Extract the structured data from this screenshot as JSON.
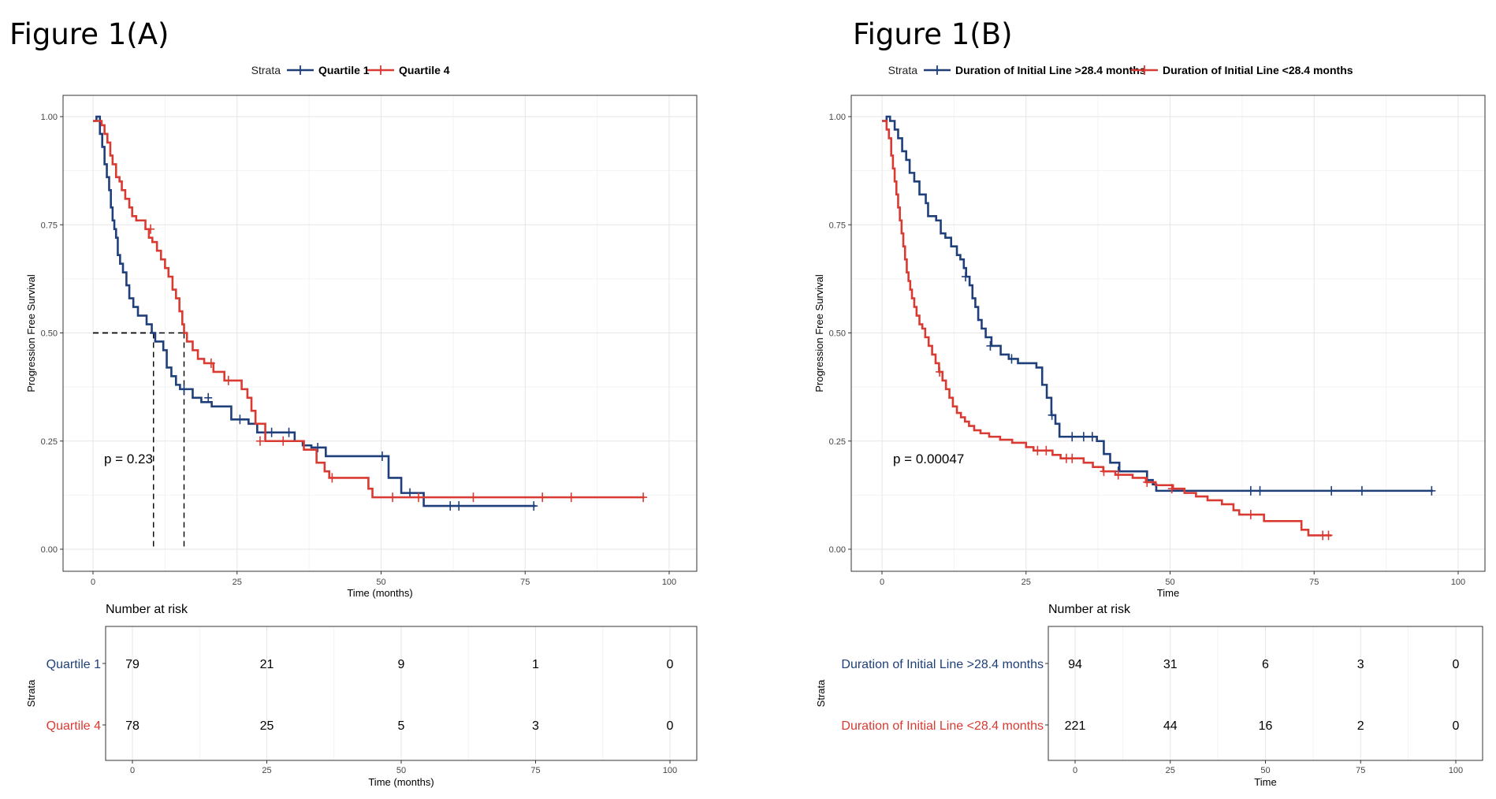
{
  "chart_data": [
    {
      "type": "line",
      "figure_label": "Figure 1(A)",
      "legend_title": "Strata",
      "legend_position": "top",
      "ylabel": "Progression Free Survival",
      "xlabel": "Time (months)",
      "xlim": [
        0,
        100
      ],
      "ylim": [
        0,
        1
      ],
      "x_ticks": [
        0,
        25,
        50,
        75,
        100
      ],
      "x_tick_labels": [
        "0",
        "25",
        "50",
        "75",
        "100"
      ],
      "y_ticks": [
        0,
        0.25,
        0.5,
        0.75,
        1
      ],
      "y_tick_labels": [
        "0.00",
        "0.25",
        "0.50",
        "0.75",
        "1.00"
      ],
      "grid": true,
      "p_value": "p = 0.23",
      "median_lines": [
        {
          "x": 10.5,
          "y": 0.5
        },
        {
          "x": 15.8,
          "y": 0.5
        }
      ],
      "series": [
        {
          "name": "Quartile 1",
          "color": "#1f3f7a",
          "steps": [
            [
              0,
              0.99
            ],
            [
              0.6,
              1
            ],
            [
              1.2,
              0.96
            ],
            [
              1.6,
              0.93
            ],
            [
              2,
              0.89
            ],
            [
              2.4,
              0.86
            ],
            [
              2.8,
              0.83
            ],
            [
              3.1,
              0.79
            ],
            [
              3.4,
              0.76
            ],
            [
              3.7,
              0.74
            ],
            [
              4,
              0.72
            ],
            [
              4.3,
              0.68
            ],
            [
              4.7,
              0.66
            ],
            [
              5.2,
              0.64
            ],
            [
              5.8,
              0.61
            ],
            [
              6.3,
              0.58
            ],
            [
              7,
              0.56
            ],
            [
              7.8,
              0.54
            ],
            [
              9.3,
              0.52
            ],
            [
              10.2,
              0.5
            ],
            [
              10.8,
              0.48
            ],
            [
              12.2,
              0.46
            ],
            [
              12.8,
              0.42
            ],
            [
              13.6,
              0.4
            ],
            [
              14.4,
              0.38
            ],
            [
              15.1,
              0.37
            ],
            [
              17.3,
              0.35
            ],
            [
              18.8,
              0.34
            ],
            [
              20.6,
              0.33
            ],
            [
              24,
              0.3
            ],
            [
              27,
              0.29
            ],
            [
              28.5,
              0.27
            ],
            [
              35,
              0.25
            ],
            [
              36.4,
              0.24
            ],
            [
              37.9,
              0.235
            ],
            [
              40.4,
              0.215
            ],
            [
              51.3,
              0.165
            ],
            [
              53.5,
              0.13
            ],
            [
              57,
              0.13
            ],
            [
              57.4,
              0.1
            ],
            [
              76.8,
              0.1
            ]
          ],
          "censors": [
            [
              15.8,
              0.37
            ],
            [
              20,
              0.35
            ],
            [
              25.5,
              0.3
            ],
            [
              31,
              0.27
            ],
            [
              34,
              0.27
            ],
            [
              39,
              0.235
            ],
            [
              50.2,
              0.215
            ],
            [
              55,
              0.13
            ],
            [
              62,
              0.1
            ],
            [
              63.5,
              0.1
            ],
            [
              76.5,
              0.1
            ]
          ],
          "risk": [
            79,
            21,
            9,
            1,
            0
          ]
        },
        {
          "name": "Quartile 4",
          "color": "#d93a32",
          "steps": [
            [
              0,
              0.99
            ],
            [
              1,
              0.99
            ],
            [
              1.5,
              0.98
            ],
            [
              2,
              0.96
            ],
            [
              2.5,
              0.94
            ],
            [
              3,
              0.91
            ],
            [
              3.4,
              0.89
            ],
            [
              4,
              0.86
            ],
            [
              4.6,
              0.85
            ],
            [
              5,
              0.83
            ],
            [
              5.6,
              0.81
            ],
            [
              6.3,
              0.79
            ],
            [
              6.8,
              0.77
            ],
            [
              7.5,
              0.76
            ],
            [
              9.1,
              0.74
            ],
            [
              9.7,
              0.72
            ],
            [
              10.3,
              0.71
            ],
            [
              11.1,
              0.69
            ],
            [
              11.8,
              0.67
            ],
            [
              12.5,
              0.65
            ],
            [
              13.1,
              0.63
            ],
            [
              13.8,
              0.6
            ],
            [
              14.4,
              0.58
            ],
            [
              15,
              0.55
            ],
            [
              15.5,
              0.52
            ],
            [
              15.8,
              0.5
            ],
            [
              16.3,
              0.48
            ],
            [
              17.3,
              0.46
            ],
            [
              18.2,
              0.44
            ],
            [
              19.3,
              0.43
            ],
            [
              20.9,
              0.41
            ],
            [
              22.8,
              0.39
            ],
            [
              25.8,
              0.37
            ],
            [
              26.8,
              0.35
            ],
            [
              27.5,
              0.32
            ],
            [
              28.2,
              0.29
            ],
            [
              29.9,
              0.25
            ],
            [
              36.6,
              0.23
            ],
            [
              38.8,
              0.2
            ],
            [
              40.2,
              0.18
            ],
            [
              41,
              0.165
            ],
            [
              47.8,
              0.14
            ],
            [
              48.5,
              0.12
            ],
            [
              95.7,
              0.12
            ]
          ],
          "censors": [
            [
              10,
              0.74
            ],
            [
              20.5,
              0.43
            ],
            [
              23.5,
              0.39
            ],
            [
              29,
              0.25
            ],
            [
              33,
              0.25
            ],
            [
              41.5,
              0.165
            ],
            [
              52,
              0.12
            ],
            [
              56.5,
              0.12
            ],
            [
              66,
              0.12
            ],
            [
              78,
              0.12
            ],
            [
              83,
              0.12
            ],
            [
              95.5,
              0.12
            ]
          ],
          "risk": [
            78,
            25,
            5,
            3,
            0
          ]
        }
      ],
      "risk_table": {
        "title": "Number at risk",
        "ylabel": "Strata",
        "xlabel": "Time (months)",
        "times": [
          0,
          25,
          50,
          75,
          100
        ],
        "time_labels": [
          "0",
          "25",
          "50",
          "75",
          "100"
        ]
      }
    },
    {
      "type": "line",
      "figure_label": "Figure 1(B)",
      "legend_title": "Strata",
      "legend_position": "top",
      "ylabel": "Progression Free Survival",
      "xlabel": "Time",
      "xlim": [
        0,
        100
      ],
      "ylim": [
        0,
        1
      ],
      "x_ticks": [
        0,
        25,
        50,
        75,
        100
      ],
      "x_tick_labels": [
        "0",
        "25",
        "50",
        "75",
        "100"
      ],
      "y_ticks": [
        0,
        0.25,
        0.5,
        0.75,
        1
      ],
      "y_tick_labels": [
        "0.00",
        "0.25",
        "0.50",
        "0.75",
        "1.00"
      ],
      "grid": true,
      "p_value": "p = 0.00047",
      "median_lines": [],
      "series": [
        {
          "name": "Duration of Initial Line >28.4 months",
          "color": "#1f3f7a",
          "steps": [
            [
              0,
              0.99
            ],
            [
              0.8,
              1
            ],
            [
              1.4,
              0.99
            ],
            [
              2.2,
              0.97
            ],
            [
              2.8,
              0.95
            ],
            [
              3.5,
              0.92
            ],
            [
              4.2,
              0.9
            ],
            [
              4.8,
              0.87
            ],
            [
              5.6,
              0.85
            ],
            [
              6.5,
              0.82
            ],
            [
              7.6,
              0.8
            ],
            [
              8,
              0.77
            ],
            [
              9.4,
              0.76
            ],
            [
              10.2,
              0.73
            ],
            [
              11,
              0.72
            ],
            [
              12,
              0.7
            ],
            [
              13,
              0.68
            ],
            [
              13.6,
              0.67
            ],
            [
              14.2,
              0.65
            ],
            [
              14.6,
              0.63
            ],
            [
              15.2,
              0.61
            ],
            [
              15.7,
              0.58
            ],
            [
              16.2,
              0.56
            ],
            [
              16.7,
              0.53
            ],
            [
              17.3,
              0.51
            ],
            [
              18,
              0.49
            ],
            [
              19,
              0.47
            ],
            [
              20.6,
              0.45
            ],
            [
              22,
              0.44
            ],
            [
              23.6,
              0.43
            ],
            [
              25.2,
              0.43
            ],
            [
              26.8,
              0.42
            ],
            [
              27.8,
              0.38
            ],
            [
              28.6,
              0.35
            ],
            [
              29.4,
              0.31
            ],
            [
              30.1,
              0.29
            ],
            [
              30.8,
              0.26
            ],
            [
              37.3,
              0.25
            ],
            [
              38.5,
              0.22
            ],
            [
              39.6,
              0.2
            ],
            [
              41.2,
              0.18
            ],
            [
              46,
              0.16
            ],
            [
              47,
              0.15
            ],
            [
              47.6,
              0.135
            ],
            [
              95.6,
              0.135
            ]
          ],
          "censors": [
            [
              14.5,
              0.63
            ],
            [
              18.8,
              0.47
            ],
            [
              22.5,
              0.44
            ],
            [
              29.5,
              0.31
            ],
            [
              33,
              0.26
            ],
            [
              35,
              0.26
            ],
            [
              36.5,
              0.26
            ],
            [
              41,
              0.18
            ],
            [
              64,
              0.135
            ],
            [
              65.6,
              0.135
            ],
            [
              78,
              0.135
            ],
            [
              83.3,
              0.135
            ],
            [
              95.4,
              0.135
            ]
          ],
          "risk": [
            94,
            31,
            6,
            3,
            0
          ]
        },
        {
          "name": "Duration of Initial Line <28.4 months",
          "color": "#d93a32",
          "steps": [
            [
              0,
              0.99
            ],
            [
              0.8,
              0.97
            ],
            [
              1.2,
              0.95
            ],
            [
              1.6,
              0.91
            ],
            [
              1.9,
              0.88
            ],
            [
              2.2,
              0.85
            ],
            [
              2.5,
              0.82
            ],
            [
              2.8,
              0.79
            ],
            [
              3.1,
              0.76
            ],
            [
              3.4,
              0.73
            ],
            [
              3.7,
              0.7
            ],
            [
              4,
              0.67
            ],
            [
              4.3,
              0.64
            ],
            [
              4.6,
              0.62
            ],
            [
              4.9,
              0.6
            ],
            [
              5.2,
              0.58
            ],
            [
              5.6,
              0.56
            ],
            [
              6,
              0.54
            ],
            [
              6.5,
              0.52
            ],
            [
              7,
              0.51
            ],
            [
              7.5,
              0.49
            ],
            [
              8.1,
              0.47
            ],
            [
              8.7,
              0.45
            ],
            [
              9.3,
              0.43
            ],
            [
              9.9,
              0.41
            ],
            [
              10.5,
              0.39
            ],
            [
              11.1,
              0.37
            ],
            [
              11.7,
              0.35
            ],
            [
              12.3,
              0.33
            ],
            [
              13,
              0.315
            ],
            [
              13.7,
              0.305
            ],
            [
              14.4,
              0.295
            ],
            [
              15.1,
              0.285
            ],
            [
              16,
              0.275
            ],
            [
              17.1,
              0.268
            ],
            [
              18.6,
              0.26
            ],
            [
              20.5,
              0.253
            ],
            [
              22.6,
              0.246
            ],
            [
              25,
              0.236
            ],
            [
              26.3,
              0.228
            ],
            [
              29.6,
              0.218
            ],
            [
              31,
              0.21
            ],
            [
              35,
              0.2
            ],
            [
              36.6,
              0.19
            ],
            [
              38.4,
              0.18
            ],
            [
              40.5,
              0.172
            ],
            [
              43.5,
              0.165
            ],
            [
              45.8,
              0.155
            ],
            [
              47.5,
              0.148
            ],
            [
              50.5,
              0.14
            ],
            [
              52.5,
              0.13
            ],
            [
              54.5,
              0.122
            ],
            [
              56.5,
              0.113
            ],
            [
              59,
              0.104
            ],
            [
              61,
              0.09
            ],
            [
              62,
              0.08
            ],
            [
              66.3,
              0.065
            ],
            [
              72.8,
              0.045
            ],
            [
              74,
              0.032
            ],
            [
              78,
              0.032
            ]
          ],
          "censors": [
            [
              10,
              0.41
            ],
            [
              27,
              0.228
            ],
            [
              28.5,
              0.228
            ],
            [
              32,
              0.21
            ],
            [
              33,
              0.21
            ],
            [
              38.5,
              0.18
            ],
            [
              41,
              0.172
            ],
            [
              46,
              0.155
            ],
            [
              50.3,
              0.14
            ],
            [
              64,
              0.08
            ],
            [
              76.5,
              0.032
            ],
            [
              77.5,
              0.032
            ]
          ],
          "risk": [
            221,
            44,
            16,
            2,
            0
          ]
        }
      ],
      "risk_table": {
        "title": "Number at risk",
        "ylabel": "Strata",
        "xlabel": "Time",
        "times": [
          0,
          25,
          50,
          75,
          100
        ],
        "time_labels": [
          "0",
          "25",
          "50",
          "75",
          "100"
        ]
      }
    }
  ]
}
